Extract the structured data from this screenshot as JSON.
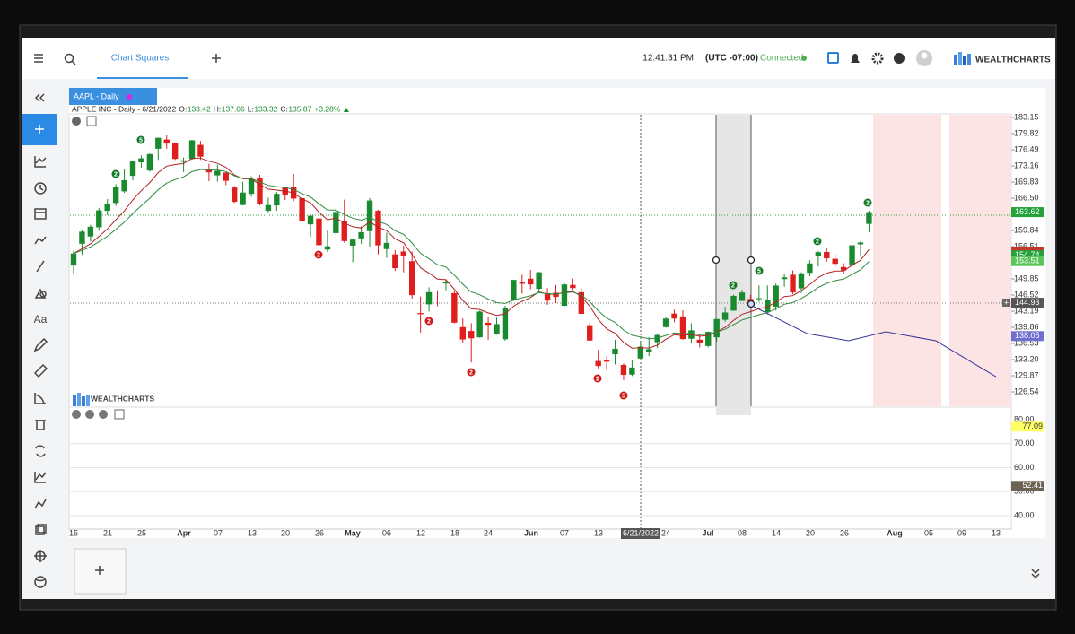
{
  "app": {
    "menu_tab": "Chart Squares",
    "clock": "12:41:31 PM",
    "timezone": "(UTC -07:00)",
    "status": "Connected",
    "brand": "WEALTHCHARTS",
    "text_tool": "Aa"
  },
  "chart": {
    "symbol": "AAPL - Daily",
    "info": [
      "APPLE INC - Daily - 6/21/2022",
      "O:",
      "133.42",
      "H:",
      "137.06",
      "L:",
      "133.32",
      "C:",
      "135.87",
      "+3.28%"
    ],
    "watermark": "WEALTHCHARTS",
    "up_color": "#1a8a2e",
    "down_color": "#e01e1e",
    "candles": [
      [
        152.6,
        155.7,
        150.9,
        155.09
      ],
      [
        157.1,
        160.0,
        154.8,
        159.59
      ],
      [
        158.6,
        161.0,
        157.6,
        160.62
      ],
      [
        160.5,
        164.5,
        159.8,
        163.98
      ],
      [
        163.9,
        166.3,
        163.0,
        165.38
      ],
      [
        165.5,
        169.4,
        164.9,
        168.82
      ],
      [
        167.9,
        172.6,
        167.6,
        170.21
      ],
      [
        171.1,
        174.1,
        170.2,
        174.07
      ],
      [
        173.9,
        175.3,
        172.8,
        174.72
      ],
      [
        172.2,
        175.7,
        172.0,
        175.6
      ],
      [
        176.7,
        179.0,
        174.4,
        178.96
      ],
      [
        178.6,
        179.6,
        176.7,
        177.77
      ],
      [
        177.8,
        178.0,
        174.4,
        174.61
      ],
      [
        174.0,
        174.9,
        171.9,
        174.31
      ],
      [
        174.6,
        178.5,
        174.4,
        178.44
      ],
      [
        177.5,
        178.3,
        174.4,
        175.06
      ],
      [
        172.4,
        173.6,
        170.0,
        171.83
      ],
      [
        171.2,
        173.4,
        169.9,
        172.14
      ],
      [
        171.8,
        171.8,
        169.2,
        170.09
      ],
      [
        168.7,
        169.0,
        165.5,
        165.75
      ],
      [
        165.1,
        169.9,
        165.0,
        167.66
      ],
      [
        167.4,
        171.0,
        166.8,
        170.4
      ],
      [
        170.6,
        171.3,
        165.0,
        165.29
      ],
      [
        163.9,
        166.6,
        163.6,
        165.07
      ],
      [
        165.0,
        167.8,
        163.9,
        167.4
      ],
      [
        168.8,
        168.9,
        166.1,
        167.23
      ],
      [
        168.9,
        171.5,
        165.9,
        166.42
      ],
      [
        166.5,
        167.9,
        161.5,
        161.79
      ],
      [
        161.1,
        163.2,
        158.5,
        162.88
      ],
      [
        162.3,
        162.3,
        156.7,
        156.8
      ],
      [
        155.9,
        159.8,
        155.4,
        156.57
      ],
      [
        159.3,
        164.5,
        158.9,
        163.64
      ],
      [
        161.8,
        166.2,
        157.3,
        157.65
      ],
      [
        156.7,
        158.2,
        153.3,
        157.96
      ],
      [
        158.2,
        160.7,
        157.1,
        159.48
      ],
      [
        159.7,
        166.5,
        156.5,
        166.02
      ],
      [
        163.9,
        164.1,
        154.9,
        156.77
      ],
      [
        156.0,
        159.4,
        154.2,
        157.28
      ],
      [
        154.9,
        155.8,
        151.5,
        152.06
      ],
      [
        155.5,
        156.7,
        151.2,
        154.51
      ],
      [
        153.5,
        155.5,
        145.8,
        146.5
      ],
      [
        142.8,
        146.2,
        138.8,
        142.56
      ],
      [
        144.6,
        148.1,
        143.1,
        147.11
      ],
      [
        145.6,
        147.5,
        144.2,
        145.54
      ],
      [
        148.9,
        149.8,
        147.5,
        149.24
      ],
      [
        146.9,
        147.4,
        140.7,
        140.82
      ],
      [
        139.9,
        141.7,
        136.6,
        137.35
      ],
      [
        139.1,
        140.7,
        132.6,
        137.59
      ],
      [
        137.8,
        143.3,
        137.7,
        143.11
      ],
      [
        140.8,
        141.9,
        137.3,
        140.36
      ],
      [
        138.4,
        141.8,
        138.3,
        140.52
      ],
      [
        137.4,
        144.3,
        137.1,
        143.78
      ],
      [
        145.4,
        149.7,
        145.3,
        149.64
      ],
      [
        149.1,
        150.7,
        146.8,
        148.84
      ],
      [
        149.9,
        151.7,
        147.7,
        148.71
      ],
      [
        147.8,
        151.3,
        146.9,
        151.21
      ],
      [
        146.9,
        147.97,
        144.5,
        145.38
      ],
      [
        147.0,
        148.6,
        144.8,
        146.14
      ],
      [
        144.3,
        149.0,
        144.1,
        148.71
      ],
      [
        148.6,
        149.9,
        147.5,
        147.96
      ],
      [
        147.1,
        147.9,
        142.5,
        142.64
      ],
      [
        140.3,
        140.8,
        137.1,
        137.13
      ],
      [
        132.9,
        135.2,
        131.4,
        131.88
      ],
      [
        133.1,
        133.9,
        131.0,
        132.76
      ],
      [
        134.3,
        137.3,
        132.2,
        135.43
      ],
      [
        132.1,
        132.4,
        129.0,
        130.06
      ],
      [
        130.1,
        133.1,
        129.8,
        131.56
      ],
      [
        133.42,
        137.06,
        133.32,
        135.87
      ],
      [
        134.8,
        137.8,
        133.9,
        135.35
      ],
      [
        136.8,
        138.6,
        135.6,
        138.27
      ],
      [
        139.9,
        141.9,
        139.8,
        141.66
      ],
      [
        142.7,
        143.5,
        140.9,
        141.66
      ],
      [
        142.1,
        143.4,
        137.3,
        137.44
      ],
      [
        137.5,
        140.7,
        136.7,
        139.23
      ],
      [
        137.3,
        138.4,
        135.7,
        136.72
      ],
      [
        136.0,
        139.0,
        135.7,
        138.93
      ],
      [
        137.8,
        141.6,
        136.9,
        141.56
      ],
      [
        141.4,
        144.1,
        141.0,
        142.92
      ],
      [
        143.3,
        146.6,
        143.3,
        146.35
      ],
      [
        145.3,
        147.6,
        145.3,
        147.04
      ],
      [
        145.7,
        146.6,
        143.8,
        144.87
      ],
      [
        145.8,
        148.5,
        145.1,
        145.86
      ],
      [
        142.99,
        148.5,
        142.5,
        145.49
      ],
      [
        144.1,
        148.9,
        143.3,
        148.47
      ],
      [
        149.8,
        150.9,
        148.2,
        150.17
      ],
      [
        150.7,
        151.6,
        146.7,
        147.07
      ],
      [
        147.9,
        151.2,
        146.9,
        151.0
      ],
      [
        151.1,
        153.7,
        150.4,
        153.04
      ],
      [
        154.5,
        155.6,
        152.4,
        155.35
      ],
      [
        155.4,
        156.3,
        153.4,
        154.09
      ],
      [
        154.0,
        155.0,
        152.3,
        152.95
      ],
      [
        152.3,
        153.1,
        150.8,
        151.6
      ],
      [
        152.6,
        157.6,
        152.2,
        156.79
      ],
      [
        156.98,
        157.6,
        154.4,
        157.35
      ],
      [
        161.2,
        163.9,
        159.5,
        163.62
      ]
    ],
    "ylim": [
      126.54,
      183.15
    ],
    "yticks": [
      183.15,
      179.82,
      176.49,
      173.16,
      169.83,
      {
        "value": 166.5,
        "label": "166.50"
      },
      163.17,
      159.84,
      156.51,
      153.18,
      149.85,
      146.52,
      143.19,
      139.86,
      136.53,
      {
        "value": 133.2,
        "label": "133.20"
      },
      129.87,
      126.54
    ],
    "price_tags": [
      {
        "value": 163.62,
        "color": "#23a13a"
      },
      {
        "value": 154.74,
        "color": "#23a13a"
      },
      {
        "value": 153.51,
        "color": "#5cc45c"
      },
      {
        "value": 144.93,
        "color": "#555555"
      },
      {
        "value": 138.05,
        "color": "#6f6fd0"
      }
    ],
    "forecast": {
      "color": "#34349a",
      "x": [
        80,
        86.7,
        91.6,
        96,
        101.9,
        109
      ],
      "values": [
        144.48,
        138.56,
        137.08,
        138.93,
        137.08,
        129.68
      ]
    },
    "signals": [
      "2",
      "5",
      "2",
      "2",
      "2",
      "2",
      "5",
      "2",
      "5",
      "2",
      "2"
    ],
    "x_labels": [
      "15",
      "21",
      "25",
      "Apr",
      "07",
      "13",
      "20",
      "26",
      "May",
      "06",
      "12",
      "18",
      "24",
      "Jun",
      "07",
      "13",
      "6/21/2022",
      "24",
      "Jul",
      "08",
      "14",
      "20",
      "26",
      "Aug",
      "05",
      "09",
      "13"
    ],
    "indicator": {
      "ylim": [
        35,
        85
      ],
      "yticks": [
        {
          "value": 80,
          "label": "80.00"
        },
        {
          "value": 70,
          "label": "70.00"
        },
        {
          "value": 60,
          "label": "60.00"
        },
        {
          "value": 50,
          "label": "50.00"
        },
        {
          "value": 40,
          "label": "40.00"
        }
      ],
      "tags": [
        {
          "value": 77.09,
          "color": "#ffff66"
        },
        {
          "value": 52.41,
          "color": "#6e6255"
        }
      ]
    }
  }
}
